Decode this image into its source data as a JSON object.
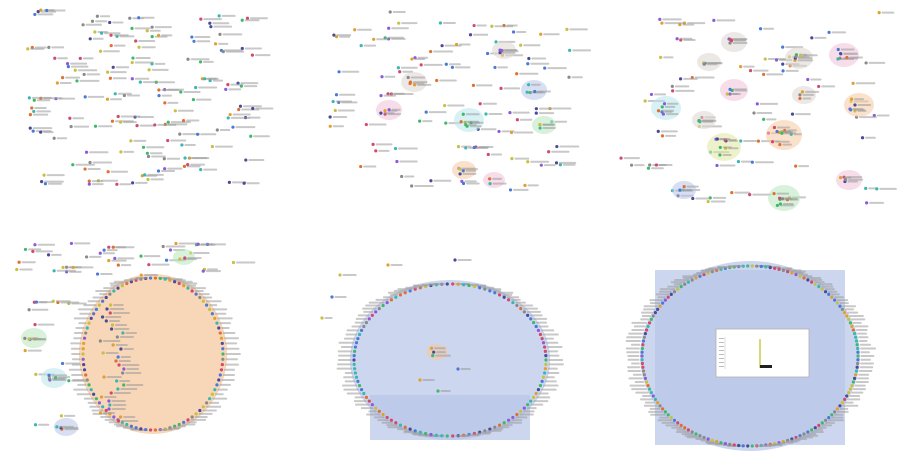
{
  "panels": [
    {
      "id": "p1",
      "stage": "scattered"
    },
    {
      "id": "p2",
      "stage": "small-clusters"
    },
    {
      "id": "p3",
      "stage": "more-clusters"
    },
    {
      "id": "p4",
      "stage": "one-large-group"
    },
    {
      "id": "p5",
      "stage": "merged-group"
    },
    {
      "id": "p6",
      "stage": "final-group-with-chart"
    }
  ],
  "colors": {
    "node_palette": [
      "#e0a030",
      "#8a5cd8",
      "#3fb86a",
      "#d24a6a",
      "#4a7ad8",
      "#c8c040",
      "#38b8b0",
      "#8a8a8a",
      "#e07030",
      "#4a4a9a"
    ],
    "hull_orange": "#f6c8a0",
    "hull_blue": "#b8c4e8",
    "hull_green": "#b8e6bc",
    "hull_teal": "#b8e6ec",
    "hull_pink": "#f0c0d8",
    "hull_olive": "#e0e8a0",
    "hull_gray": "#dcd6d0",
    "chart_line": "#c8c840",
    "chart_bar": "#202020"
  }
}
